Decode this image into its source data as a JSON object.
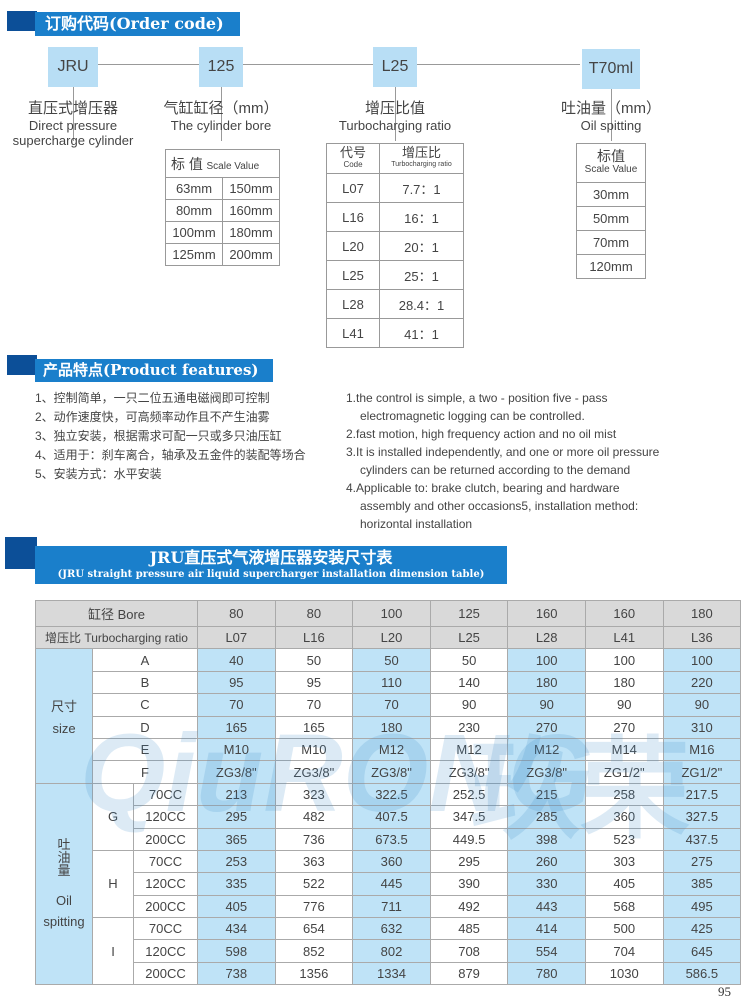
{
  "order": {
    "title": "订购代码(Order code)",
    "codes": [
      "JRU",
      "125",
      "L25",
      "T70ml"
    ],
    "labels": [
      {
        "cn": "直压式增压器",
        "en1": "Direct pressure",
        "en2": "supercharge cylinder"
      },
      {
        "cn": "气缸缸径（mm）",
        "en1": "The cylinder bore"
      },
      {
        "cn": "增压比值",
        "en1": "Turbocharging ratio"
      },
      {
        "cn": "吐油量（mm）",
        "en1": "Oil spitting"
      }
    ],
    "bore_table": {
      "head_cn": "标 值",
      "head_en": "Scale Value",
      "rows": [
        [
          "63mm",
          "150mm"
        ],
        [
          "80mm",
          "160mm"
        ],
        [
          "100mm",
          "180mm"
        ],
        [
          "125mm",
          "200mm"
        ]
      ]
    },
    "ratio_table": {
      "code_cn": "代号",
      "code_en": "Code",
      "ratio_cn": "增压比",
      "ratio_en": "Turbocharging ratio",
      "rows": [
        [
          "L07",
          "7.7：1"
        ],
        [
          "L16",
          "16：1"
        ],
        [
          "L20",
          "20：1"
        ],
        [
          "L25",
          "25：1"
        ],
        [
          "L28",
          "28.4：1"
        ],
        [
          "L41",
          "41：1"
        ]
      ]
    },
    "oil_table": {
      "head_cn": "标值",
      "head_en": "Scale Value",
      "rows": [
        "30mm",
        "50mm",
        "70mm",
        "120mm"
      ]
    }
  },
  "features": {
    "title": "产品特点(Product features)",
    "cn": [
      "1、控制简单，一只二位五通电磁阀即可控制",
      "2、动作速度快，可高频率动作且不产生油雾",
      "3、独立安装，根据需求可配一只或多只油压缸",
      "4、适用于：刹车离合，轴承及五金件的装配等场合",
      "5、安装方式：水平安装"
    ],
    "en": [
      "1.the control is simple, a two - position five - pass",
      "electromagnetic logging can be controlled.",
      "2.fast motion, high frequency action and no oil mist",
      "3.It is installed independently, and one or more oil pressure",
      "cylinders can be returned according to the demand",
      "4.Applicable to: brake clutch, bearing and hardware",
      "assembly and other occasions5, installation method:",
      "horizontal installation"
    ]
  },
  "dim": {
    "title": "JRU直压式气液增压器安装尺寸表",
    "subtitle": "(JRU straight pressure air liquid supercharger installation dimension table)",
    "bore_label": "缸径 Bore",
    "ratio_label": "增压比 Turbocharging ratio",
    "bores": [
      "80",
      "80",
      "100",
      "125",
      "160",
      "160",
      "180"
    ],
    "ratios": [
      "L07",
      "L16",
      "L20",
      "L25",
      "L28",
      "L41",
      "L36"
    ],
    "size_label_cn": "尺寸",
    "size_label_en": "size",
    "size_rows": [
      {
        "k": "A",
        "v": [
          "40",
          "50",
          "50",
          "50",
          "100",
          "100",
          "100"
        ]
      },
      {
        "k": "B",
        "v": [
          "95",
          "95",
          "110",
          "140",
          "180",
          "180",
          "220"
        ]
      },
      {
        "k": "C",
        "v": [
          "70",
          "70",
          "70",
          "90",
          "90",
          "90",
          "90"
        ]
      },
      {
        "k": "D",
        "v": [
          "165",
          "165",
          "180",
          "230",
          "270",
          "270",
          "310"
        ]
      },
      {
        "k": "E",
        "v": [
          "M10",
          "M10",
          "M12",
          "M12",
          "M12",
          "M14",
          "M16"
        ]
      },
      {
        "k": "F",
        "v": [
          "ZG3/8\"",
          "ZG3/8\"",
          "ZG3/8\"",
          "ZG3/8\"",
          "ZG3/8\"",
          "ZG1/2\"",
          "ZG1/2\""
        ]
      }
    ],
    "oil_label_cn": "吐油量",
    "oil_label_en1": "Oil",
    "oil_label_en2": "spitting",
    "oil_groups": [
      {
        "g": "G",
        "rows": [
          {
            "k": "70CC",
            "v": [
              "213",
              "323",
              "322.5",
              "252.5",
              "215",
              "258",
              "217.5"
            ]
          },
          {
            "k": "120CC",
            "v": [
              "295",
              "482",
              "407.5",
              "347.5",
              "285",
              "360",
              "327.5"
            ]
          },
          {
            "k": "200CC",
            "v": [
              "365",
              "736",
              "673.5",
              "449.5",
              "398",
              "523",
              "437.5"
            ]
          }
        ]
      },
      {
        "g": "H",
        "rows": [
          {
            "k": "70CC",
            "v": [
              "253",
              "363",
              "360",
              "295",
              "260",
              "303",
              "275"
            ]
          },
          {
            "k": "120CC",
            "v": [
              "335",
              "522",
              "445",
              "390",
              "330",
              "405",
              "385"
            ]
          },
          {
            "k": "200CC",
            "v": [
              "405",
              "776",
              "711",
              "492",
              "443",
              "568",
              "495"
            ]
          }
        ]
      },
      {
        "g": "I",
        "rows": [
          {
            "k": "70CC",
            "v": [
              "434",
              "654",
              "632",
              "485",
              "414",
              "500",
              "425"
            ]
          },
          {
            "k": "120CC",
            "v": [
              "598",
              "852",
              "802",
              "708",
              "554",
              "704",
              "645"
            ]
          },
          {
            "k": "200CC",
            "v": [
              "738",
              "1356",
              "1334",
              "879",
              "780",
              "1030",
              "586.5"
            ]
          }
        ]
      }
    ],
    "highlight_columns": [
      0,
      2,
      4,
      6
    ],
    "highlight_color": "#bfe3f7"
  },
  "watermark": "QIURONG 玖荣",
  "page_number": "95"
}
